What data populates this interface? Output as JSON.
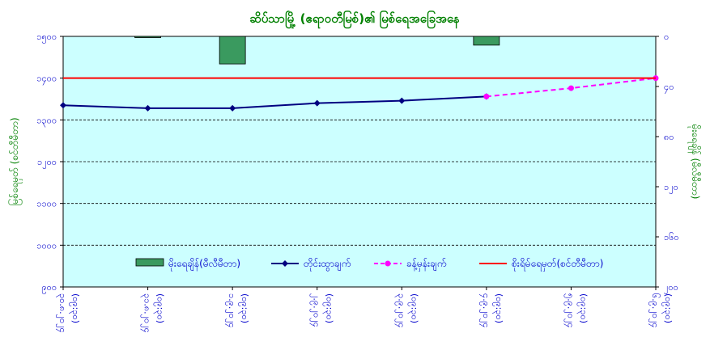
{
  "chart_data": {
    "type": "line",
    "title": "ဆိပ်သာမြို့ (ဧရာဝတီမြစ်)၏ မြစ်ရေအခြေအနေ",
    "ylabel_left": "မြစ်ရေမှတ် (စင်တီမီတာ)",
    "ylabel_right": "မိုးရေချိန် (မီလီမီတာ)",
    "ylim_left": [
      900,
      1500
    ],
    "yticks_left": [
      "၁၅၀၀",
      "၁၄၀၀",
      "၁၃၀၀",
      "၁၂၀၀",
      "၁၁၀၀",
      "၁၀၀၀",
      "၉၀၀"
    ],
    "ylim_right": [
      0,
      200
    ],
    "yticks_right": [
      "၀",
      "၄၀",
      "၈၀",
      "၁၂၀",
      "၁၆၀",
      "၂၀၀"
    ],
    "x_ticks": [
      {
        "date": "၃၀.၈.၂၀၂၄",
        "time": "(၀၉:၃၀)"
      },
      {
        "date": "၃၁.၈.၂၀၂၄",
        "time": "(၀၉:၃၀)"
      },
      {
        "date": "၁.၉.၂၀၂၄",
        "time": "(၀၉:၃၀)"
      },
      {
        "date": "၂.၉.၂၀၂၄",
        "time": "(၀၉:၃၀)"
      },
      {
        "date": "၃.၉.၂၀၂၄",
        "time": "(၀၉:၃၀)"
      },
      {
        "date": "၄.၉.၂၀၂၄",
        "time": "(၀၉:၃၀)"
      },
      {
        "date": "၅.၉.၂၀၂၄",
        "time": "(၀၉:၃၀)"
      },
      {
        "date": "၆.၉.၂၀၂၄",
        "time": "(၀၉:၃၀)"
      }
    ],
    "series": [
      {
        "name": "မိုးရေချိန်(မီလီမီတာ)",
        "kind": "bar",
        "axis": "right",
        "color": "#3a9a5f",
        "values": [
          null,
          1,
          22,
          null,
          null,
          7,
          null,
          null
        ]
      },
      {
        "name": "တိုင်းထွာချက်",
        "kind": "line",
        "axis": "left",
        "color": "#000080",
        "values": [
          1335,
          1328,
          1328,
          1340,
          1346,
          1356,
          null,
          null
        ]
      },
      {
        "name": "ခန့်မှန်းချက်",
        "kind": "dashed",
        "axis": "left",
        "color": "#ff00ff",
        "values": [
          null,
          null,
          null,
          null,
          null,
          1356,
          1376,
          1400
        ]
      },
      {
        "name": "စိုးရိမ်ရေမှတ်(စင်တီမီတာ)",
        "kind": "hline",
        "axis": "left",
        "color": "#ff0000",
        "value": 1400
      }
    ],
    "grid": true,
    "legend_position": "bottom-inside",
    "plot_bg": "#ccffff"
  }
}
